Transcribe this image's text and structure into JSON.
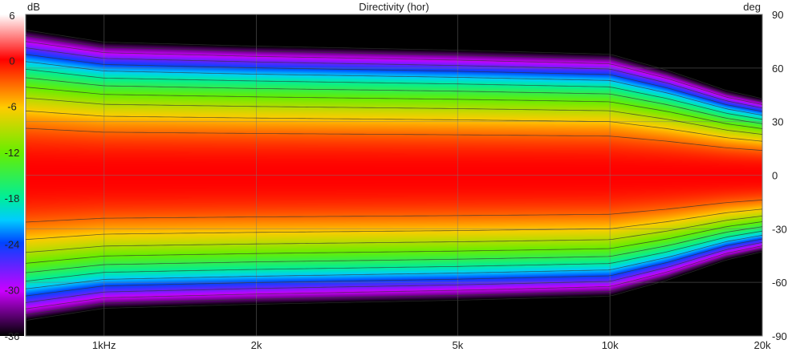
{
  "chart_data": {
    "type": "heatmap",
    "title": "Directivity (hor)",
    "colorbar": {
      "unit": "dB",
      "ticks": [
        6,
        0,
        -6,
        -12,
        -18,
        -24,
        -30,
        -36
      ],
      "range": [
        -36,
        6
      ]
    },
    "y_axis": {
      "unit": "deg",
      "ticks": [
        90,
        60,
        30,
        0,
        -30,
        -60,
        -90
      ],
      "range": [
        -90,
        90
      ]
    },
    "x_axis": {
      "scale": "log",
      "ticks": [
        "1kHz",
        "2k",
        "5k",
        "10k",
        "20k"
      ],
      "tick_values_hz": [
        1000,
        2000,
        5000,
        10000,
        20000
      ],
      "range_hz": [
        700,
        20000
      ]
    },
    "contour_step_db": 3,
    "grid": true,
    "beamwidth_6db": [
      {
        "freq_hz": 700,
        "angle_deg": 36
      },
      {
        "freq_hz": 1000,
        "angle_deg": 33
      },
      {
        "freq_hz": 2000,
        "angle_deg": 32
      },
      {
        "freq_hz": 5000,
        "angle_deg": 31
      },
      {
        "freq_hz": 10000,
        "angle_deg": 30
      },
      {
        "freq_hz": 13000,
        "angle_deg": 26
      },
      {
        "freq_hz": 17000,
        "angle_deg": 21
      },
      {
        "freq_hz": 20000,
        "angle_deg": 19
      }
    ]
  }
}
